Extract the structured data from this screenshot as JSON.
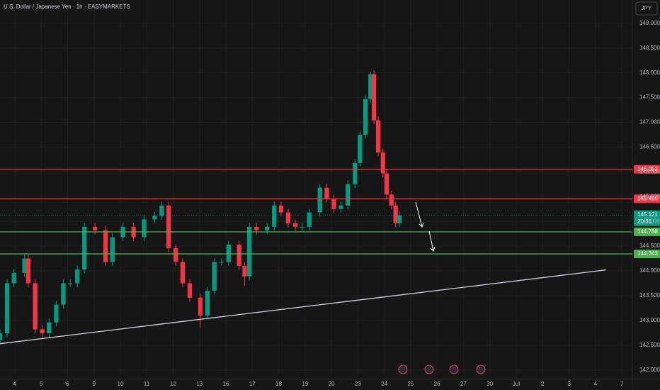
{
  "chart_data": {
    "type": "candlestick",
    "title": "U.S. Dollar / Japanese Yen · 1h · EASYMARKETS",
    "currency": "JPY",
    "x": [
      -0.56,
      -0.29,
      -0.03,
      0.37,
      0.51,
      0.77,
      1.04,
      1.3,
      1.57,
      1.84,
      2.1,
      2.37,
      2.64,
      3.04,
      3.44,
      3.7,
      4.1,
      4.5,
      4.9,
      5.3,
      5.57,
      5.83,
      6.1,
      6.36,
      6.63,
      7.03,
      7.3,
      7.56,
      7.83,
      8.1,
      8.5,
      8.71,
      8.89,
      9.16,
      9.56,
      9.83,
      10.09,
      10.36,
      10.63,
      10.89,
      11.16,
      11.56,
      11.82,
      12.09,
      12.36,
      12.62,
      12.89,
      13.08,
      13.29,
      13.48,
      13.61,
      13.77,
      13.95,
      14.09,
      14.27,
      14.43,
      14.57
    ],
    "open": [
      142.6,
      142.74,
      143.75,
      143.96,
      144.25,
      143.75,
      142.82,
      142.74,
      142.96,
      143.32,
      143.75,
      143.75,
      144.03,
      144.89,
      144.82,
      144.18,
      144.68,
      144.89,
      144.68,
      145.04,
      145.11,
      145.32,
      144.46,
      144.18,
      143.75,
      143.46,
      143.1,
      143.6,
      144.18,
      144.18,
      144.53,
      144.1,
      143.89,
      144.89,
      144.82,
      144.89,
      145.32,
      145.18,
      144.96,
      144.89,
      144.89,
      145.18,
      145.68,
      145.46,
      145.25,
      145.32,
      145.75,
      146.18,
      146.75,
      147.47,
      147.97,
      147.04,
      146.39,
      145.97,
      145.54,
      145.32,
      144.96
    ],
    "high": [
      142.82,
      143.83,
      144.04,
      144.33,
      144.33,
      143.83,
      142.9,
      143.04,
      143.4,
      143.83,
      143.83,
      144.11,
      144.97,
      144.97,
      144.9,
      144.76,
      144.97,
      144.97,
      145.12,
      145.19,
      145.4,
      145.4,
      144.54,
      144.26,
      143.83,
      143.54,
      143.68,
      144.26,
      144.26,
      144.61,
      144.61,
      144.18,
      144.97,
      144.97,
      144.97,
      145.4,
      145.4,
      145.26,
      145.04,
      144.97,
      145.26,
      145.76,
      145.76,
      145.54,
      145.4,
      145.83,
      146.26,
      146.83,
      147.55,
      148.02,
      148.05,
      147.12,
      146.47,
      146.05,
      145.62,
      145.4,
      145.2
    ],
    "low": [
      142.52,
      142.66,
      143.67,
      143.88,
      143.67,
      142.74,
      142.66,
      142.66,
      142.88,
      143.24,
      143.67,
      143.67,
      143.95,
      144.74,
      144.1,
      144.1,
      144.6,
      144.6,
      144.6,
      144.96,
      145.03,
      144.38,
      144.1,
      143.67,
      143.38,
      142.85,
      143.02,
      143.52,
      144.1,
      144.1,
      144.02,
      143.7,
      143.81,
      144.74,
      144.74,
      144.81,
      145.1,
      144.88,
      144.81,
      144.81,
      144.81,
      145.1,
      145.38,
      145.17,
      145.17,
      145.24,
      145.67,
      146.1,
      146.67,
      147.39,
      146.96,
      146.31,
      145.89,
      145.46,
      145.24,
      144.88,
      144.88
    ],
    "close": [
      142.74,
      143.75,
      143.96,
      144.25,
      143.75,
      142.82,
      142.74,
      142.96,
      143.32,
      143.75,
      143.75,
      144.03,
      144.89,
      144.82,
      144.18,
      144.68,
      144.89,
      144.68,
      145.04,
      145.11,
      145.32,
      144.46,
      144.18,
      143.75,
      143.46,
      143.1,
      143.6,
      144.18,
      144.18,
      144.53,
      144.1,
      143.89,
      144.89,
      144.82,
      144.89,
      145.32,
      145.18,
      144.96,
      144.89,
      144.89,
      145.18,
      145.68,
      145.46,
      145.25,
      145.32,
      145.75,
      146.18,
      146.75,
      147.47,
      147.97,
      147.04,
      146.39,
      145.97,
      145.54,
      145.32,
      144.96,
      145.12
    ],
    "up_color": "#089981",
    "down_color": "#f23645",
    "xlim": [
      -0.56,
      23.4
    ],
    "xticks": [
      {
        "value": 0,
        "label": "4"
      },
      {
        "value": 1,
        "label": "5"
      },
      {
        "value": 2,
        "label": "6"
      },
      {
        "value": 3,
        "label": "9"
      },
      {
        "value": 4,
        "label": "10"
      },
      {
        "value": 5,
        "label": "11"
      },
      {
        "value": 6,
        "label": "12"
      },
      {
        "value": 7,
        "label": "13"
      },
      {
        "value": 8,
        "label": "16"
      },
      {
        "value": 9,
        "label": "17"
      },
      {
        "value": 10,
        "label": "18"
      },
      {
        "value": 11,
        "label": "19"
      },
      {
        "value": 12,
        "label": "20"
      },
      {
        "value": 13,
        "label": "23"
      },
      {
        "value": 14,
        "label": "24"
      },
      {
        "value": 15,
        "label": "25"
      },
      {
        "value": 16,
        "label": "26"
      },
      {
        "value": 17,
        "label": "27"
      },
      {
        "value": 18,
        "label": "30"
      },
      {
        "value": 19,
        "label": "Jul"
      },
      {
        "value": 20,
        "label": "2"
      },
      {
        "value": 21,
        "label": "3"
      },
      {
        "value": 22,
        "label": "4"
      },
      {
        "value": 23,
        "label": "7"
      }
    ],
    "ylim": [
      141.81,
      149.47
    ],
    "yticks": [
      {
        "value": 142,
        "label": "142.000"
      },
      {
        "value": 142.5,
        "label": "142.500"
      },
      {
        "value": 143,
        "label": "143.000"
      },
      {
        "value": 143.5,
        "label": "143.500"
      },
      {
        "value": 144,
        "label": "144.000"
      },
      {
        "value": 144.5,
        "label": "144.500"
      },
      {
        "value": 145,
        "label": "145.000"
      },
      {
        "value": 145.5,
        "label": "145.500"
      },
      {
        "value": 146,
        "label": "146.000"
      },
      {
        "value": 146.5,
        "label": "146.500"
      },
      {
        "value": 147,
        "label": "147.000"
      },
      {
        "value": 147.5,
        "label": "147.500"
      },
      {
        "value": 148,
        "label": "148.000"
      },
      {
        "value": 148.5,
        "label": "148.500"
      },
      {
        "value": 149,
        "label": "149.000"
      }
    ],
    "grid": true,
    "levels": [
      {
        "value": 146.052,
        "color": "#f23645"
      },
      {
        "value": 145.455,
        "color": "#f23645"
      },
      {
        "value": 144.788,
        "color": "#4caf50"
      },
      {
        "value": 144.343,
        "color": "#4caf50"
      }
    ],
    "trendline": {
      "x": [
        -0.56,
        22.4
      ],
      "y": [
        142.53,
        144.02
      ],
      "color": "#d1d4dc"
    },
    "last_price": {
      "value": 145.121,
      "countdown": "20:31",
      "color": "#089981"
    }
  }
}
